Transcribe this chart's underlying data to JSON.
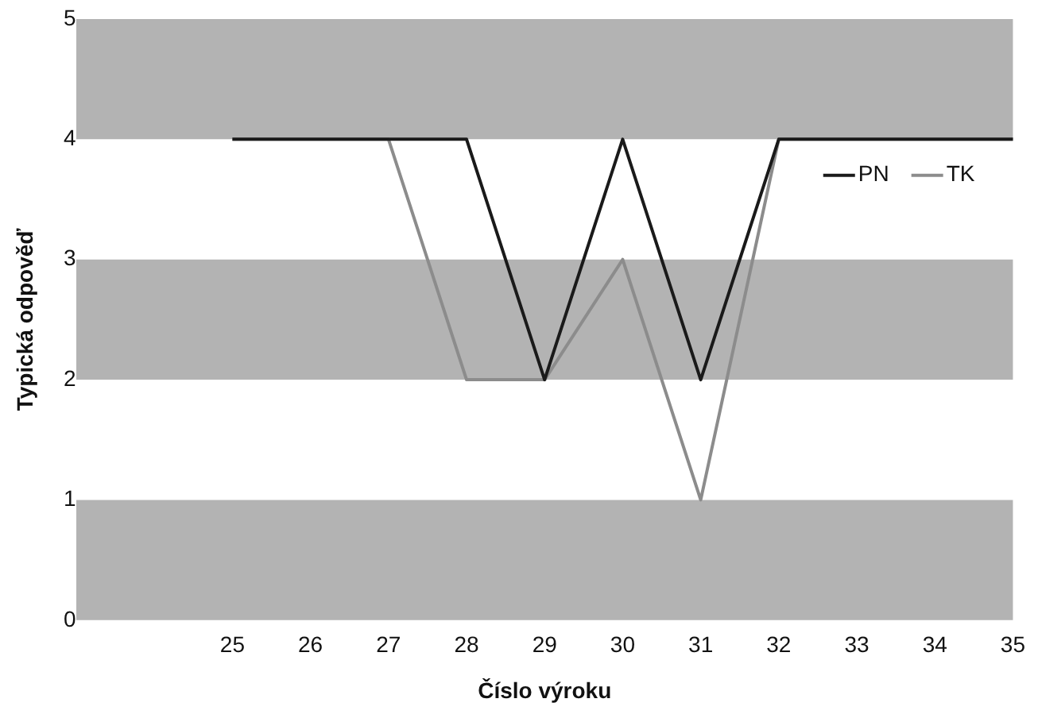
{
  "chart_data": {
    "type": "line",
    "xlabel": "Číslo výroku",
    "ylabel": "Typická odpověď",
    "categories": [
      null,
      null,
      "25",
      "26",
      "27",
      "28",
      "29",
      "30",
      "31",
      "32",
      "33",
      "34",
      "35"
    ],
    "series": [
      {
        "name": "PN",
        "color": "#1a1a1a",
        "values": [
          null,
          null,
          4,
          4,
          4,
          4,
          2,
          4,
          2,
          4,
          4,
          4,
          4
        ]
      },
      {
        "name": "TK",
        "color": "#8c8c8c",
        "values": [
          null,
          null,
          4,
          4,
          4,
          2,
          2,
          3,
          1,
          4,
          4,
          4,
          4
        ]
      }
    ],
    "ylim": [
      0,
      5
    ],
    "yticks": [
      0,
      1,
      2,
      3,
      4,
      5
    ],
    "bands": [
      {
        "axis": "y",
        "from": 4,
        "to": 5,
        "color": "#b3b3b3"
      },
      {
        "axis": "y",
        "from": 2,
        "to": 3,
        "color": "#b3b3b3"
      },
      {
        "axis": "y",
        "from": 0,
        "to": 1,
        "color": "#b3b3b3"
      }
    ],
    "grid": false,
    "legend": "right",
    "marker": "none",
    "line_style": "solid"
  }
}
